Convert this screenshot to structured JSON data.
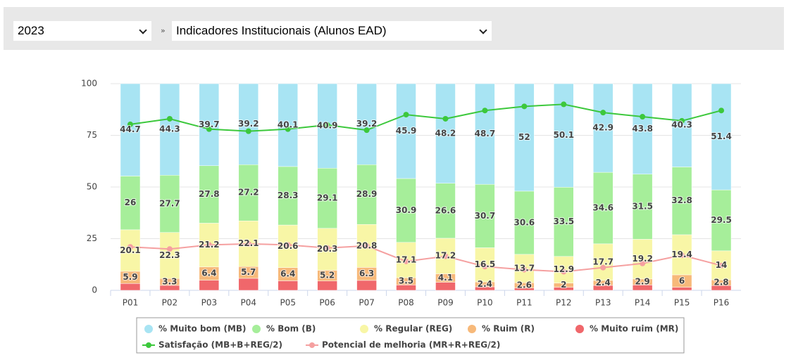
{
  "toolbar": {
    "year": "2023",
    "separator": "»",
    "report": "Indicadores Institucionais (Alunos EAD)"
  },
  "chart_data": {
    "type": "bar",
    "stacked": true,
    "categories": [
      "P01",
      "P02",
      "P03",
      "P04",
      "P05",
      "P06",
      "P07",
      "P08",
      "P09",
      "P10",
      "P11",
      "P12",
      "P13",
      "P14",
      "P15",
      "P16"
    ],
    "ylim": [
      0,
      100
    ],
    "yticks": [
      0,
      25,
      50,
      75,
      100
    ],
    "grid": true,
    "legend": "bottom",
    "series": [
      {
        "name": "% Muito bom (MB)",
        "type": "bar",
        "color": "#a8e4f3",
        "labels": true,
        "values": [
          44.7,
          44.3,
          39.7,
          39.2,
          40.1,
          40.9,
          39.2,
          45.9,
          48.2,
          48.7,
          52,
          50.1,
          42.9,
          43.8,
          40.3,
          51.4
        ]
      },
      {
        "name": "% Bom (B)",
        "type": "bar",
        "color": "#a6ee9a",
        "labels": true,
        "values": [
          26,
          27.7,
          27.8,
          27.2,
          28.3,
          29.1,
          28.9,
          30.9,
          26.6,
          30.7,
          30.6,
          33.5,
          34.6,
          31.5,
          32.8,
          29.5
        ]
      },
      {
        "name": "% Regular (REG)",
        "type": "bar",
        "color": "#f8f6a6",
        "labels": true,
        "values": [
          20.1,
          22.3,
          21.2,
          22.1,
          20.6,
          20.3,
          20.8,
          17.1,
          17.2,
          16.5,
          13.7,
          12.9,
          17.7,
          19.2,
          19.4,
          14
        ]
      },
      {
        "name": "% Ruim (R)",
        "type": "bar",
        "color": "#f7b97a",
        "labels": true,
        "values": [
          5.9,
          3.3,
          6.4,
          5.7,
          6.4,
          5.2,
          6.3,
          3.5,
          4.1,
          2.4,
          2.6,
          2,
          2.4,
          2.9,
          6,
          2.8
        ]
      },
      {
        "name": "% Muito ruim (MR)",
        "type": "bar",
        "color": "#f0676b",
        "labels": false,
        "values": [
          3.3,
          2.4,
          4.9,
          5.8,
          4.6,
          4.5,
          4.8,
          2.6,
          3.9,
          1.7,
          1.1,
          1.5,
          2.4,
          2.6,
          1.5,
          2.3
        ]
      },
      {
        "name": "Satisfação (MB+B+REG/2)",
        "type": "line",
        "color": "#3cc83c",
        "values": [
          80.3,
          83,
          78,
          77,
          78,
          80,
          77.5,
          85,
          83,
          87,
          89,
          90,
          86,
          84,
          82,
          87
        ]
      },
      {
        "name": "Potencial de melhoria (MR+R+REG/2)",
        "type": "line",
        "color": "#f5a0a0",
        "values": [
          21,
          20,
          22,
          22.5,
          22,
          20.5,
          21.5,
          14,
          16.5,
          11.5,
          10,
          9,
          11,
          13,
          17,
          12
        ]
      }
    ]
  }
}
